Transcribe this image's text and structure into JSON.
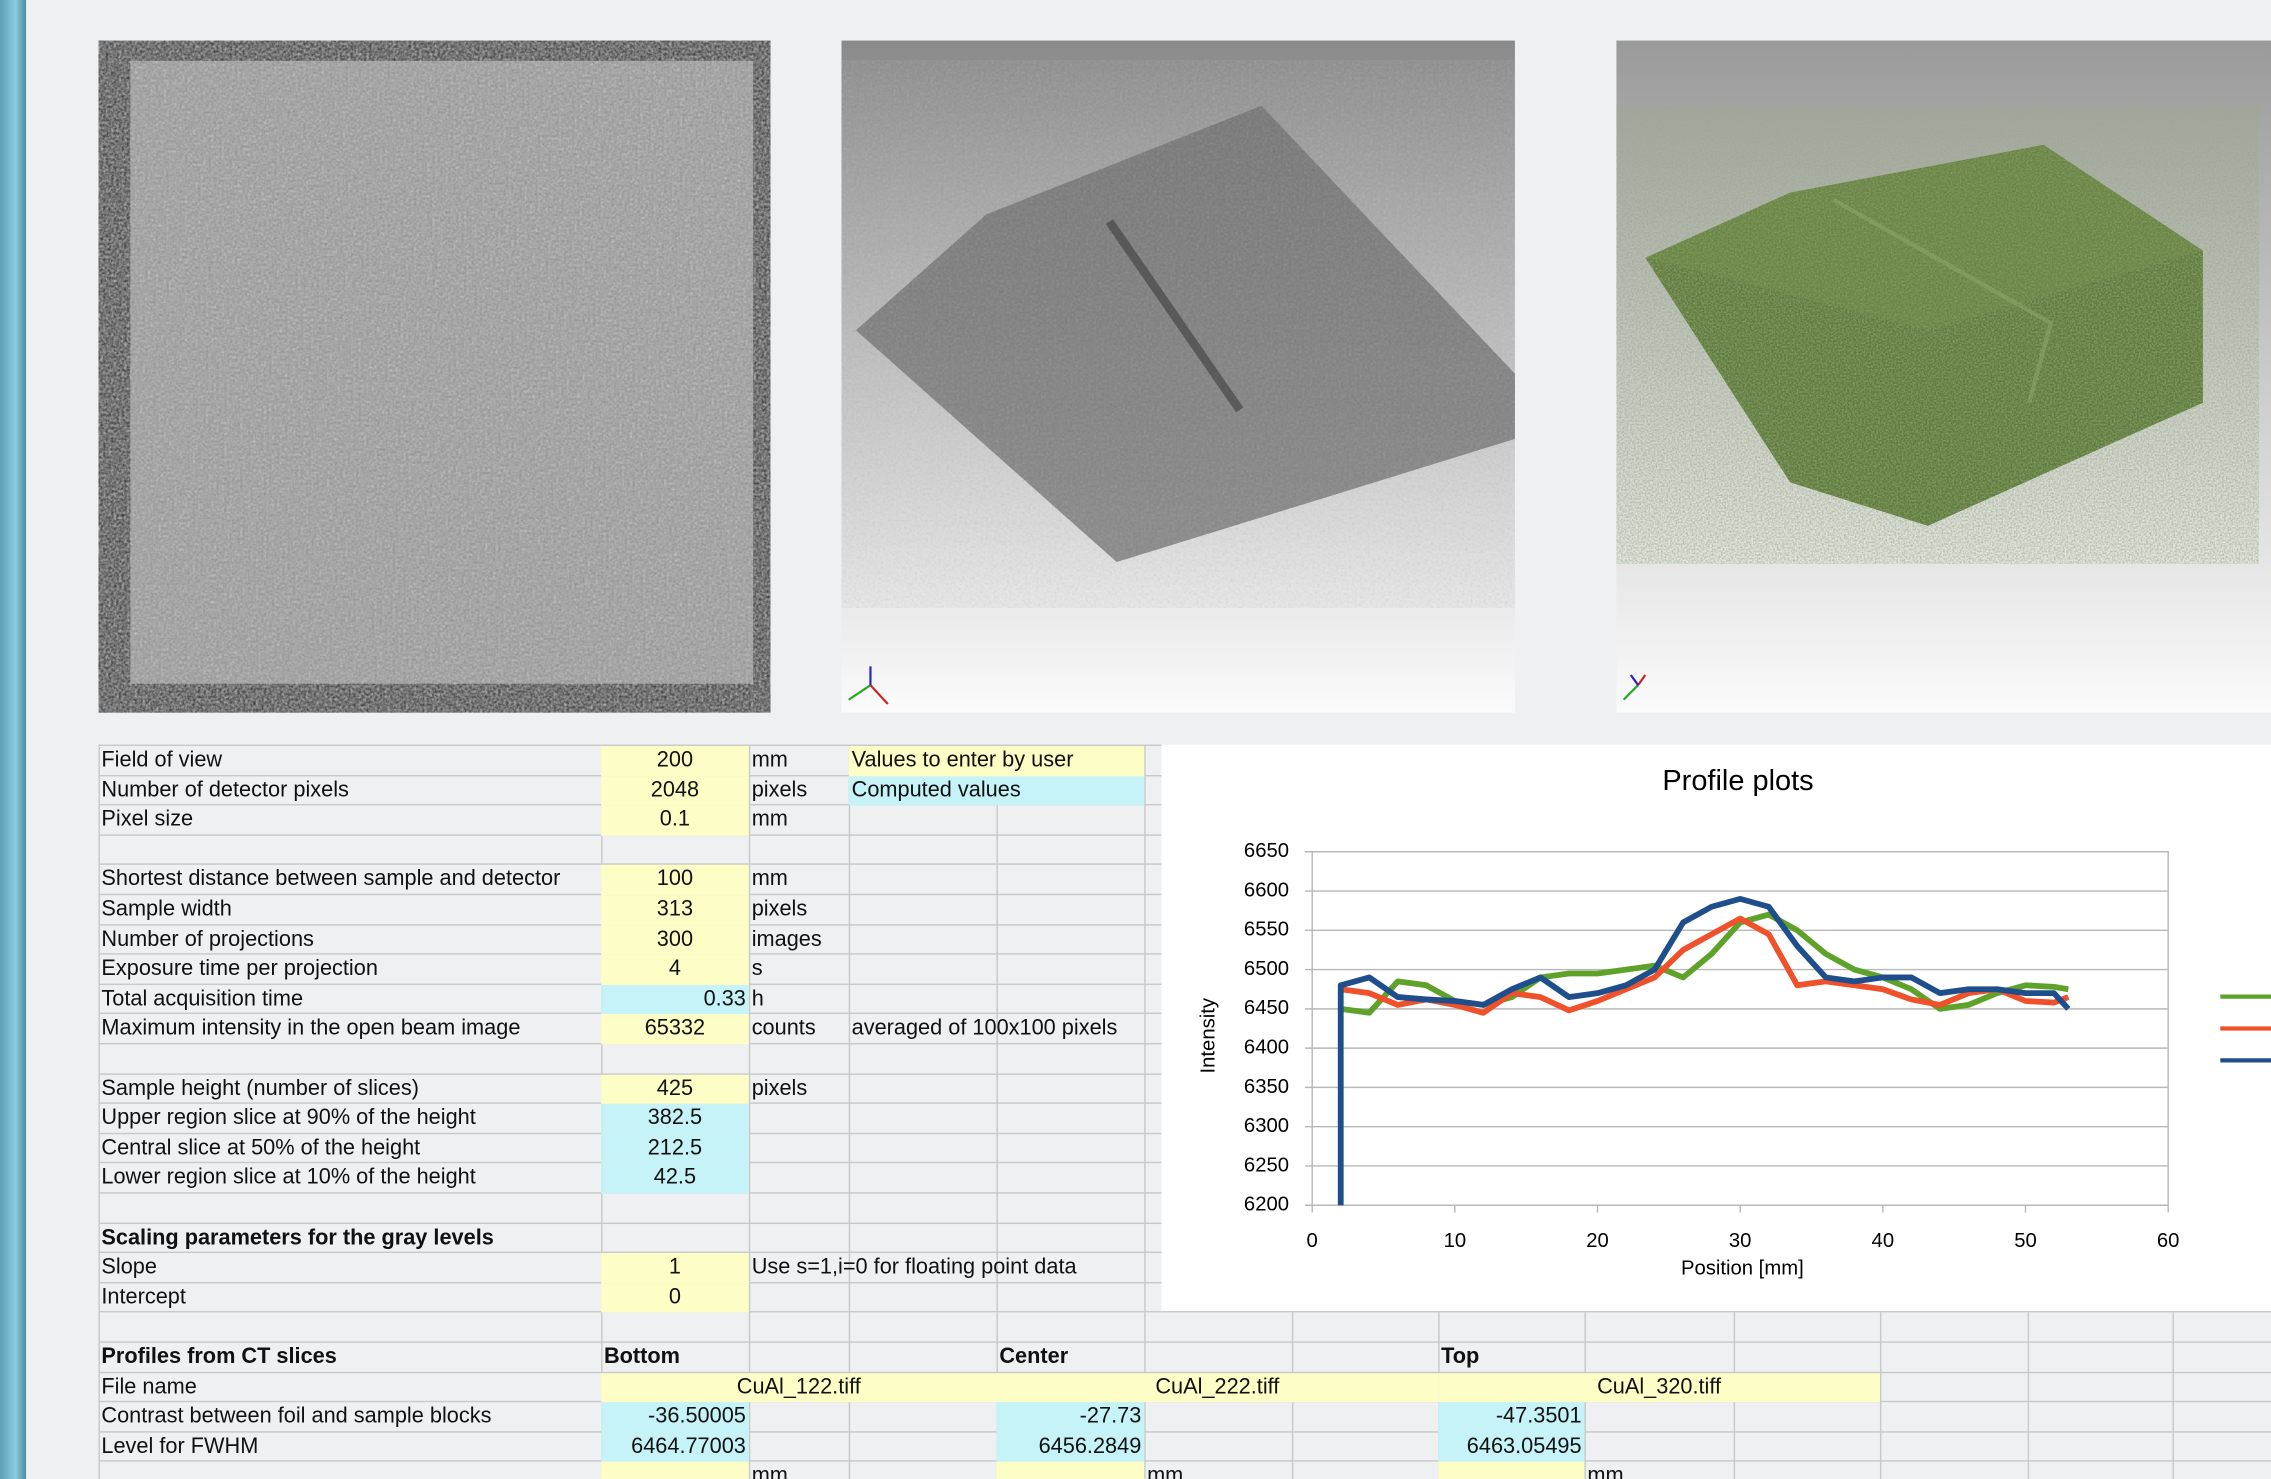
{
  "sheet": {
    "rows": [
      [
        "Field of view",
        "200",
        "mm",
        "Values to enter by user"
      ],
      [
        "Number of detector pixels",
        "2048",
        "pixels",
        "Computed values"
      ],
      [
        "Pixel size",
        "0.1",
        "mm"
      ],
      [
        "Shortest distance between sample and detector",
        "100",
        "mm"
      ],
      [
        "Sample width",
        "313",
        "pixels"
      ],
      [
        "Number of projections",
        "300",
        "images"
      ],
      [
        "Exposure time per projection",
        "4",
        "s"
      ],
      [
        "Total acquisition time",
        "0.33",
        "h"
      ],
      [
        "Maximum intensity in the open beam image",
        "65332",
        "counts",
        "averaged of 100x100 pixels"
      ],
      [
        "Sample height (number of slices)",
        "425",
        "pixels"
      ],
      [
        "Upper region slice at 90% of the height",
        "382.5"
      ],
      [
        "Central slice at 50% of the height",
        "212.5"
      ],
      [
        "Lower region slice at 10% of the height",
        "42.5"
      ],
      [
        "Scaling parameters for the gray levels"
      ],
      [
        "Slope",
        "1",
        "Use s=1,i=0 for floating point data"
      ],
      [
        "Intercept",
        "0"
      ],
      [
        "Profiles from CT slices",
        "Bottom",
        "Center",
        "Top"
      ],
      [
        "File name",
        "CuAl_122.tiff",
        "CuAl_222.tiff",
        "CuAl_320.tiff"
      ],
      [
        "Contrast between foil and sample blocks",
        "-36.50005",
        "-27.73",
        "-47.3501"
      ],
      [
        "Level for FWHM",
        "6464.77003",
        "6456.2849",
        "6463.05495"
      ],
      [
        "mm",
        "mm",
        "mm"
      ]
    ]
  },
  "chart_data": {
    "type": "line",
    "title": "Profile plots",
    "x_label": "Position [mm]",
    "y_label": "Intensity",
    "xlim": [
      0,
      60
    ],
    "xticks": [
      0,
      10,
      20,
      30,
      40,
      50,
      60
    ],
    "ylim": [
      6200,
      6650
    ],
    "yticks": [
      6200,
      6250,
      6300,
      6350,
      6400,
      6450,
      6500,
      6550,
      6600,
      6650
    ],
    "grid": true,
    "series": [
      {
        "color": "#5fa22a",
        "x": [
          2,
          4,
          6,
          8,
          10,
          12,
          14,
          16,
          18,
          20,
          22,
          24,
          26,
          28,
          30,
          32,
          34,
          36,
          38,
          40,
          42,
          44,
          46,
          48,
          50,
          52,
          53
        ],
        "values": [
          6450,
          6445,
          6485,
          6480,
          6460,
          6455,
          6465,
          6490,
          6495,
          6495,
          6500,
          6505,
          6490,
          6520,
          6560,
          6570,
          6550,
          6520,
          6500,
          6490,
          6475,
          6450,
          6455,
          6470,
          6480,
          6478,
          6475
        ]
      },
      {
        "color": "#f0502a",
        "x": [
          2,
          4,
          6,
          8,
          10,
          12,
          14,
          16,
          18,
          20,
          22,
          24,
          26,
          28,
          30,
          32,
          34,
          36,
          38,
          40,
          42,
          44,
          46,
          48,
          50,
          52,
          53
        ],
        "values": [
          6475,
          6470,
          6455,
          6462,
          6455,
          6445,
          6470,
          6465,
          6448,
          6460,
          6475,
          6490,
          6525,
          6545,
          6565,
          6545,
          6480,
          6485,
          6480,
          6475,
          6462,
          6455,
          6470,
          6475,
          6460,
          6458,
          6465
        ]
      },
      {
        "color": "#1f4e8c",
        "x": [
          2,
          2,
          4,
          6,
          8,
          10,
          12,
          14,
          16,
          18,
          20,
          22,
          24,
          26,
          28,
          30,
          32,
          34,
          36,
          38,
          40,
          42,
          44,
          46,
          48,
          50,
          52,
          53
        ],
        "values": [
          6200,
          6480,
          6490,
          6465,
          6462,
          6460,
          6455,
          6475,
          6490,
          6465,
          6470,
          6480,
          6500,
          6560,
          6580,
          6590,
          6580,
          6530,
          6490,
          6485,
          6490,
          6490,
          6470,
          6475,
          6475,
          6470,
          6470,
          6450
        ]
      }
    ]
  }
}
